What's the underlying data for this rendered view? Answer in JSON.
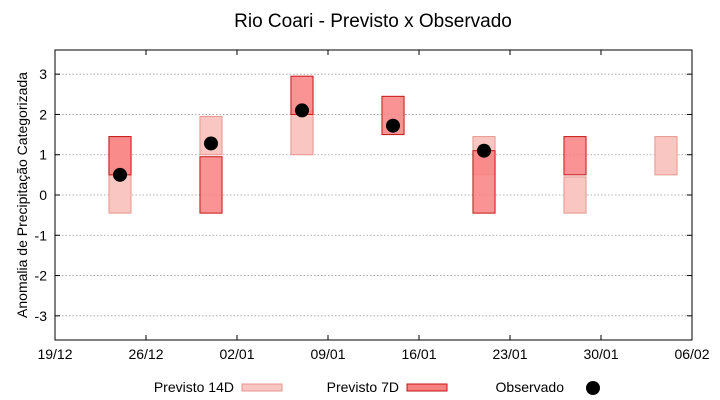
{
  "chart_data": {
    "type": "scatter",
    "title": "Rio Coari - Previsto x Observado",
    "xlabel": "",
    "ylabel": "Anomalia de Precipitação Categorizada",
    "ylim": [
      -3.6,
      3.6
    ],
    "yticks": [
      -3,
      -2,
      -1,
      0,
      1,
      2,
      3
    ],
    "xlim": [
      "2023-12-19",
      "2024-02-06"
    ],
    "xticks": [
      {
        "date": "2023-12-19",
        "label": "19/12"
      },
      {
        "date": "2023-12-26",
        "label": "26/12"
      },
      {
        "date": "2024-01-02",
        "label": "02/01"
      },
      {
        "date": "2024-01-09",
        "label": "09/01"
      },
      {
        "date": "2024-01-16",
        "label": "16/01"
      },
      {
        "date": "2024-01-23",
        "label": "23/01"
      },
      {
        "date": "2024-01-30",
        "label": "30/01"
      },
      {
        "date": "2024-02-06",
        "label": "06/02"
      }
    ],
    "grid": true,
    "legend_position": "bottom",
    "colors": {
      "previsto_14d_fill": "#f9c6c1",
      "previsto_14d_edge": "#e8968e",
      "previsto_7d_fill": "#f98080",
      "previsto_7d_edge": "#c41414",
      "observado": "#000000",
      "grid": "#9a9a9a"
    },
    "series": [
      {
        "name": "Previsto 14D",
        "kind": "range",
        "points": [
          {
            "x": "2023-12-24",
            "low": -0.45,
            "high": 1.45
          },
          {
            "x": "2023-12-31",
            "low": 1.0,
            "high": 1.95
          },
          {
            "x": "2024-01-07",
            "low": 1.0,
            "high": 2.1
          },
          {
            "x": "2024-01-21",
            "low": 0.5,
            "high": 1.45
          },
          {
            "x": "2024-01-28",
            "low": -0.45,
            "high": 0.45
          },
          {
            "x": "2024-02-04",
            "low": 0.5,
            "high": 1.45
          }
        ]
      },
      {
        "name": "Previsto 7D",
        "kind": "range",
        "points": [
          {
            "x": "2023-12-24",
            "low": 0.5,
            "high": 1.45
          },
          {
            "x": "2023-12-31",
            "low": -0.45,
            "high": 0.95
          },
          {
            "x": "2024-01-07",
            "low": 2.0,
            "high": 2.95
          },
          {
            "x": "2024-01-14",
            "low": 1.5,
            "high": 2.45
          },
          {
            "x": "2024-01-21",
            "low": -0.45,
            "high": 1.1
          },
          {
            "x": "2024-01-28",
            "low": 0.5,
            "high": 1.45
          }
        ]
      },
      {
        "name": "Observado",
        "kind": "points",
        "points": [
          {
            "x": "2023-12-24",
            "y": 0.5
          },
          {
            "x": "2023-12-31",
            "y": 1.28
          },
          {
            "x": "2024-01-07",
            "y": 2.1
          },
          {
            "x": "2024-01-14",
            "y": 1.72
          },
          {
            "x": "2024-01-21",
            "y": 1.1
          }
        ]
      }
    ]
  }
}
